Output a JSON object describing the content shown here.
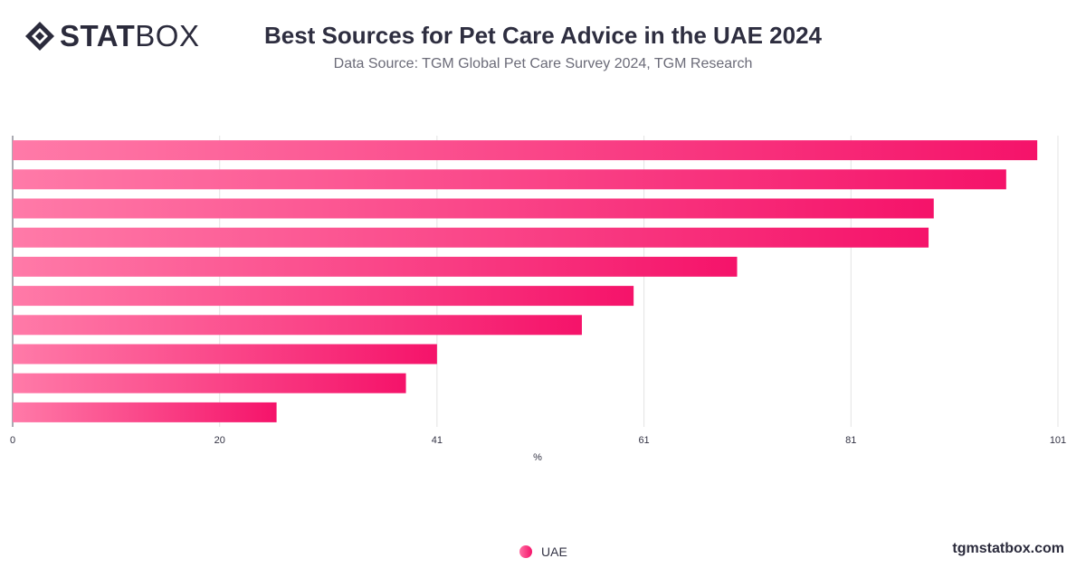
{
  "header": {
    "logo_bold": "STAT",
    "logo_light": "BOX",
    "title": "Best Sources for Pet Care Advice in the UAE 2024",
    "subtitle": "Data Source: TGM Global Pet Care Survey 2024, TGM Research"
  },
  "footer": {
    "site": "tgmstatbox.com"
  },
  "colors": {
    "bar_start": "#ff7aa8",
    "bar_end": "#f5136a",
    "grid": "#e3e3e3",
    "axis_text": "#333344"
  },
  "chart_data": {
    "type": "bar",
    "orientation": "horizontal",
    "categories": [
      "",
      "",
      "",
      "",
      "",
      "",
      "",
      "",
      "",
      ""
    ],
    "series": [
      {
        "name": "UAE",
        "values": [
          99,
          96,
          89,
          88.5,
          70,
          60,
          55,
          41,
          38,
          25.5
        ]
      }
    ],
    "title": "Best Sources for Pet Care Advice in the UAE 2024",
    "subtitle": "Data Source: TGM Global Pet Care Survey 2024, TGM Research",
    "xlabel": "%",
    "ylabel": "",
    "xlim": [
      0,
      101
    ],
    "xticks": [
      0,
      20,
      41,
      61,
      81,
      101
    ],
    "grid": true,
    "legend": "bottom-center"
  }
}
